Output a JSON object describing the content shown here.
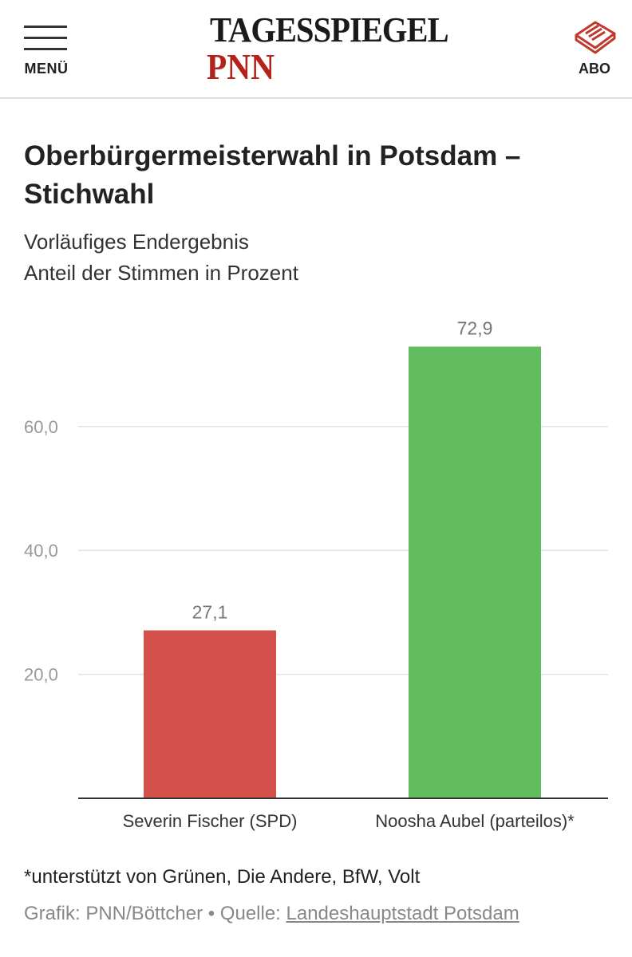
{
  "header": {
    "menu_label": "MENÜ",
    "logo_top": "TAGESSPIEGEL",
    "logo_bottom": "PNN",
    "abo_label": "ABO"
  },
  "colors": {
    "brand_red": "#b3221b",
    "bar_fischer": "#d4504a",
    "bar_aubel": "#62bd5f"
  },
  "chart_data": {
    "type": "bar",
    "title": "Oberbürgermeisterwahl in Potsdam – Stichwahl",
    "subtitle_lines": [
      "Vorläufiges Endergebnis",
      "Anteil der Stimmen in Prozent"
    ],
    "categories": [
      "Severin Fischer (SPD)",
      "Noosha Aubel (parteilos)*"
    ],
    "values": [
      27.1,
      72.9
    ],
    "value_labels": [
      "27,1",
      "72,9"
    ],
    "colors": [
      "#d4504a",
      "#62bd5f"
    ],
    "ylim": [
      0,
      80
    ],
    "yticks": [
      20,
      40,
      60
    ],
    "ytick_labels": [
      "20,0",
      "40,0",
      "60,0"
    ],
    "grid": true,
    "xlabel": "",
    "ylabel": ""
  },
  "footnote": "*unterstützt von Grünen, Die Andere, BfW, Volt",
  "credit": {
    "prefix": "Grafik: PNN/Böttcher • Quelle: ",
    "link_text": "Landeshauptstadt Potsdam"
  }
}
